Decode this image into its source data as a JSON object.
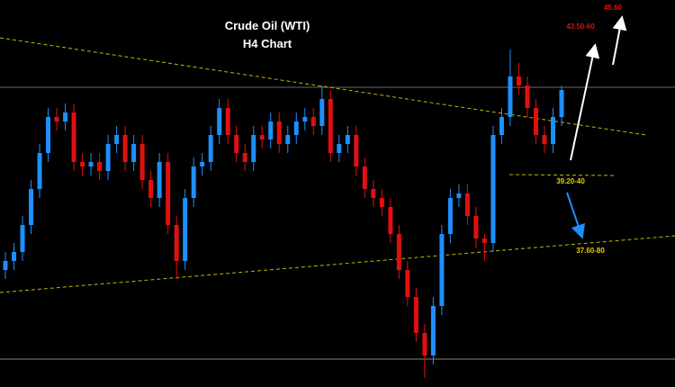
{
  "chart_data": {
    "type": "candlestick",
    "title": "Crude Oil (WTI)",
    "subtitle": "H4 Chart",
    "annotations": [
      "45.60",
      "43.50-60",
      "39.20-40",
      "37.60-80"
    ],
    "ylim": [
      34.6,
      43.2
    ],
    "up_color": "#1e8fff",
    "down_color": "#e01010",
    "open": [
      37.2,
      37.4,
      37.6,
      38.2,
      39.0,
      39.8,
      40.6,
      40.5,
      40.7,
      39.6,
      39.5,
      39.6,
      39.4,
      40.0,
      40.2,
      39.6,
      40.0,
      39.2,
      38.8,
      39.6,
      38.2,
      37.4,
      38.8,
      39.5,
      39.6,
      40.2,
      40.8,
      40.2,
      39.8,
      39.6,
      40.2,
      40.1,
      40.5,
      40.0,
      40.2,
      40.5,
      40.6,
      40.4,
      41.0,
      39.8,
      40.0,
      40.2,
      39.5,
      39.0,
      38.8,
      38.6,
      38.0,
      37.2,
      36.6,
      35.8,
      35.3,
      36.4,
      38.0,
      38.8,
      38.9,
      38.4,
      37.9,
      37.8,
      40.2,
      40.6,
      41.5,
      41.3,
      40.8,
      40.2,
      40.0,
      40.6
    ],
    "high": [
      37.6,
      37.8,
      38.4,
      39.2,
      40.0,
      40.8,
      40.8,
      40.9,
      40.9,
      39.8,
      39.8,
      39.8,
      40.2,
      40.4,
      40.4,
      40.2,
      40.2,
      39.4,
      39.8,
      39.8,
      38.4,
      39.0,
      39.7,
      39.8,
      40.4,
      41.0,
      41.0,
      40.4,
      40.0,
      40.4,
      40.4,
      40.7,
      40.7,
      40.4,
      40.7,
      40.8,
      40.8,
      41.3,
      41.2,
      40.2,
      40.4,
      40.4,
      39.7,
      39.2,
      39.0,
      38.8,
      38.2,
      37.4,
      36.8,
      36.0,
      36.6,
      38.2,
      39.0,
      39.1,
      39.1,
      38.6,
      38.0,
      40.4,
      40.8,
      42.1,
      41.8,
      41.5,
      41.0,
      40.4,
      40.8,
      41.3
    ],
    "low": [
      37.0,
      37.2,
      37.4,
      38.0,
      38.8,
      39.6,
      40.3,
      40.3,
      39.4,
      39.3,
      39.3,
      39.2,
      39.2,
      39.8,
      39.4,
      39.4,
      39.0,
      38.6,
      38.6,
      38.0,
      37.0,
      37.2,
      38.6,
      39.3,
      39.4,
      40.0,
      40.0,
      39.6,
      39.4,
      39.4,
      39.9,
      39.9,
      39.8,
      39.8,
      40.0,
      40.3,
      40.2,
      40.2,
      39.6,
      39.6,
      39.8,
      39.3,
      38.8,
      38.6,
      38.4,
      37.8,
      37.0,
      36.4,
      35.6,
      34.8,
      35.1,
      36.2,
      37.8,
      38.6,
      38.2,
      37.7,
      37.4,
      37.6,
      40.0,
      40.4,
      41.1,
      40.6,
      40.0,
      39.8,
      39.8,
      40.4
    ],
    "close": [
      37.4,
      37.6,
      38.2,
      39.0,
      39.8,
      40.6,
      40.5,
      40.7,
      39.6,
      39.5,
      39.6,
      39.4,
      40.0,
      40.2,
      39.6,
      40.0,
      39.2,
      38.8,
      39.6,
      38.2,
      37.4,
      38.8,
      39.5,
      39.6,
      40.2,
      40.8,
      40.2,
      39.8,
      39.6,
      40.2,
      40.1,
      40.5,
      40.0,
      40.2,
      40.5,
      40.6,
      40.4,
      41.0,
      39.8,
      40.0,
      40.2,
      39.5,
      39.0,
      38.8,
      38.6,
      38.0,
      37.2,
      36.6,
      35.8,
      35.3,
      36.4,
      38.0,
      38.8,
      38.9,
      38.4,
      37.9,
      37.8,
      40.2,
      40.6,
      41.5,
      41.3,
      40.8,
      40.2,
      40.0,
      40.6,
      41.2
    ]
  }
}
